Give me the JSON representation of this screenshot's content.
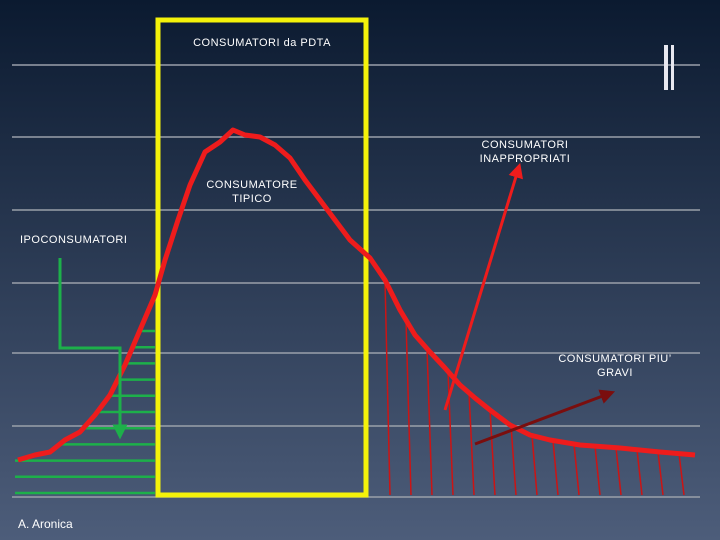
{
  "labels": {
    "pdta": "CONSUMATORI da PDTA",
    "inappropriati": [
      "CONSUMATORI",
      "INAPPROPRIATI"
    ],
    "tipico": [
      "CONSUMATORE",
      "TIPICO"
    ],
    "ipo": "IPOCONSUMATORI",
    "gravi": [
      "CONSUMATORI PIU’",
      "GRAVI"
    ]
  },
  "author": "A. Aronica"
}
